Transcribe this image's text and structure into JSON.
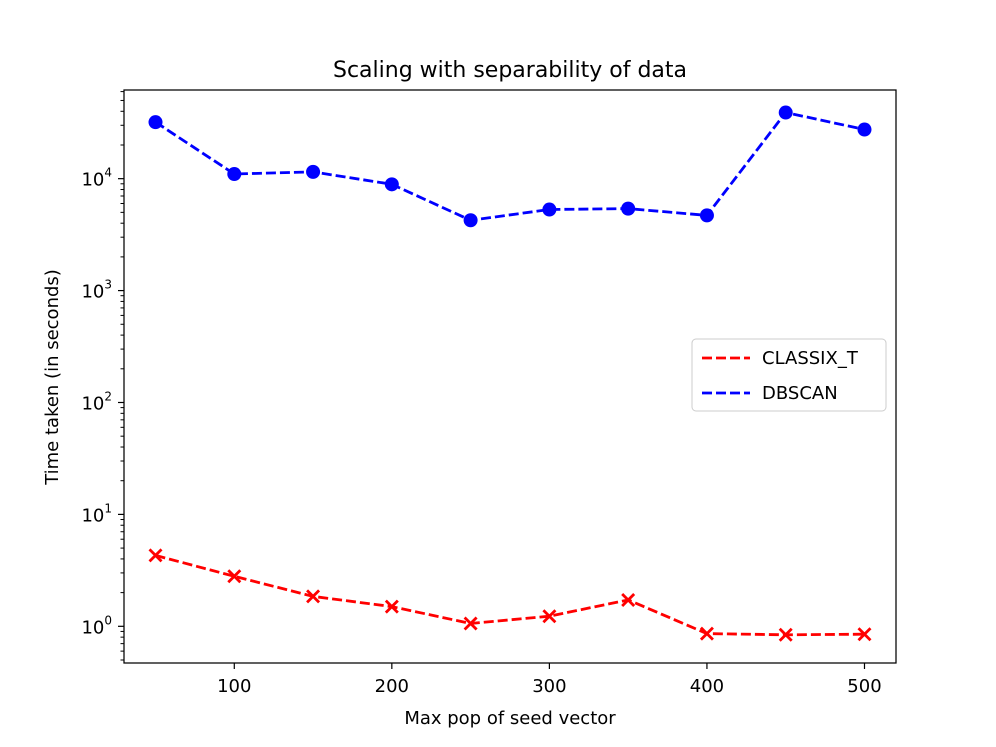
{
  "chart_data": {
    "type": "line",
    "title": "Scaling with separability of data",
    "xlabel": "Max pop of seed vector",
    "ylabel": "Time taken (in seconds)",
    "yscale": "log",
    "xlim": [
      30,
      520
    ],
    "ylim": [
      0.47,
      62000
    ],
    "x": [
      50,
      100,
      150,
      200,
      250,
      300,
      350,
      400,
      450,
      500
    ],
    "x_ticks": [
      100,
      200,
      300,
      400,
      500
    ],
    "x_tick_labels": [
      "100",
      "200",
      "300",
      "400",
      "500"
    ],
    "y_ticks": [
      1,
      10,
      100,
      1000,
      10000
    ],
    "y_tick_labels": [
      {
        "base": "10",
        "exp": "0"
      },
      {
        "base": "10",
        "exp": "1"
      },
      {
        "base": "10",
        "exp": "2"
      },
      {
        "base": "10",
        "exp": "3"
      },
      {
        "base": "10",
        "exp": "4"
      }
    ],
    "legend_position": "center-right",
    "series": [
      {
        "name": "CLASSIX_T",
        "color": "#ff0000",
        "marker": "x",
        "linestyle": "dashed",
        "values": [
          4.3,
          2.8,
          1.85,
          1.5,
          1.06,
          1.23,
          1.72,
          0.86,
          0.84,
          0.85
        ]
      },
      {
        "name": "DBSCAN",
        "color": "#0000ff",
        "marker": "o",
        "linestyle": "dashed",
        "values": [
          32000,
          11000,
          11500,
          8900,
          4250,
          5300,
          5400,
          4700,
          39000,
          27500
        ]
      }
    ]
  }
}
